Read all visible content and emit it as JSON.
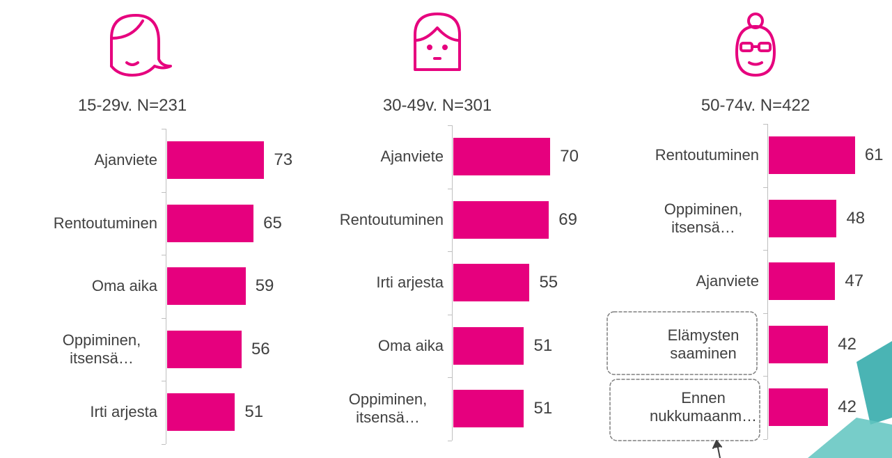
{
  "chart_data": [
    {
      "type": "bar",
      "orientation": "horizontal",
      "title": "15-29v. N=231",
      "color": "#e6007e",
      "categories": [
        "Ajanviete",
        "Rentoutuminen",
        "Oma aika",
        "Oppiminen, itsensä…",
        "Irti arjesta"
      ],
      "values": [
        73,
        65,
        59,
        56,
        51
      ]
    },
    {
      "type": "bar",
      "orientation": "horizontal",
      "title": "30-49v. N=301",
      "color": "#e6007e",
      "categories": [
        "Ajanviete",
        "Rentoutuminen",
        "Irti arjesta",
        "Oma aika",
        "Oppiminen, itsensä…"
      ],
      "values": [
        70,
        69,
        55,
        51,
        51
      ]
    },
    {
      "type": "bar",
      "orientation": "horizontal",
      "title": "50-74v. N=422",
      "color": "#e6007e",
      "categories": [
        "Rentoutuminen",
        "Oppiminen, itsensä…",
        "Ajanviete",
        "Elämysten saaminen",
        "Ennen nukkumaanm…"
      ],
      "values": [
        61,
        48,
        47,
        42,
        42
      ]
    }
  ]
}
